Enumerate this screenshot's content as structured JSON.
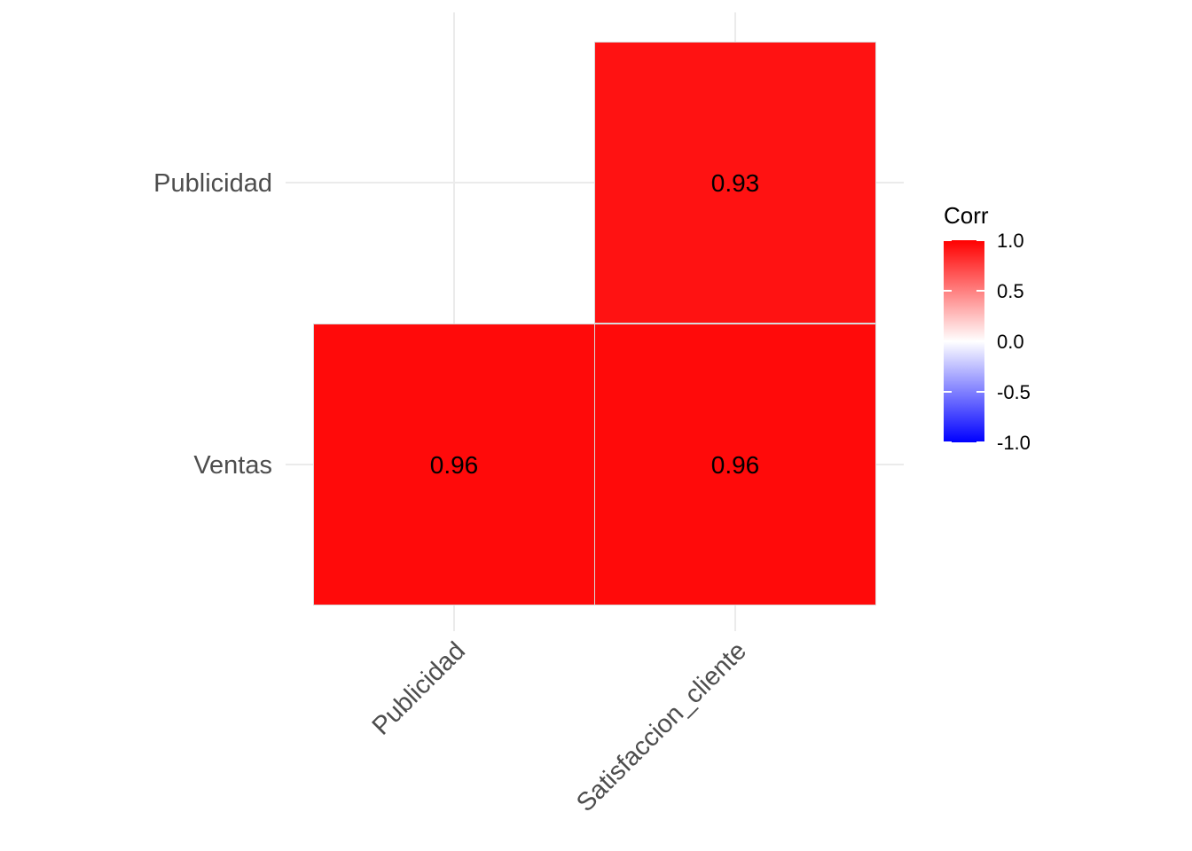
{
  "chart_data": {
    "type": "heatmap",
    "title": "",
    "xlabel": "",
    "ylabel": "",
    "x_categories": [
      "Publicidad",
      "Satisfaccion_cliente"
    ],
    "y_categories": [
      "Ventas",
      "Publicidad"
    ],
    "cells": [
      {
        "x": "Publicidad",
        "y": "Ventas",
        "value": 0.96,
        "label": "0.96"
      },
      {
        "x": "Satisfaccion_cliente",
        "y": "Ventas",
        "value": 0.96,
        "label": "0.96"
      },
      {
        "x": "Satisfaccion_cliente",
        "y": "Publicidad",
        "value": 0.93,
        "label": "0.93"
      }
    ],
    "legend": {
      "title": "Corr",
      "position": "right",
      "range": [
        -1.0,
        1.0
      ],
      "ticks": [
        1.0,
        0.5,
        0.0,
        -0.5,
        -1.0
      ],
      "tick_labels": [
        "1.0",
        "0.5",
        "0.0",
        "-0.5",
        "-1.0"
      ]
    },
    "colors": {
      "high": "#ff0000",
      "mid": "#ffffff",
      "low": "#0000ff",
      "grid": "#ebebeb",
      "tile_border": "#d9d9d9"
    },
    "grid": true,
    "x_tick_angle_deg": 45
  }
}
